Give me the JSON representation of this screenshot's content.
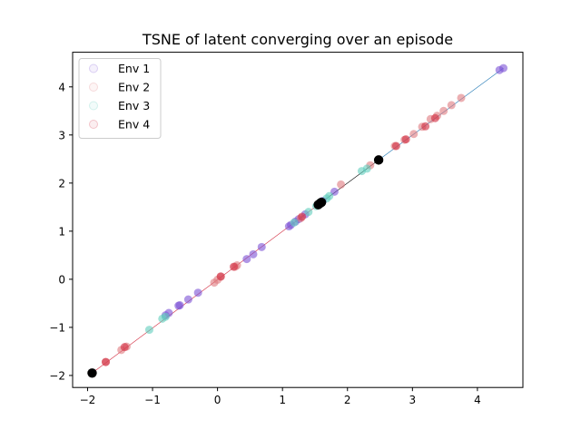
{
  "chart_data": {
    "type": "scatter",
    "title": "TSNE of latent converging over an episode",
    "xlabel": "",
    "ylabel": "",
    "xlim": [
      -2.23,
      4.7
    ],
    "ylim": [
      -2.25,
      4.72
    ],
    "xticks": [
      -2,
      -1,
      0,
      1,
      2,
      3,
      4
    ],
    "yticks": [
      -2,
      -1,
      0,
      1,
      2,
      3,
      4
    ],
    "grid": false,
    "legend_position": "top-left",
    "series": [
      {
        "name": "Env 1",
        "color": "#7b52d6",
        "points": [
          [
            -0.75,
            -0.7
          ],
          [
            -0.8,
            -0.75
          ],
          [
            -0.6,
            -0.55
          ],
          [
            -0.58,
            -0.54
          ],
          [
            -0.45,
            -0.42
          ],
          [
            -0.3,
            -0.28
          ],
          [
            0.45,
            0.42
          ],
          [
            0.55,
            0.52
          ],
          [
            0.68,
            0.67
          ],
          [
            1.1,
            1.1
          ],
          [
            1.13,
            1.13
          ],
          [
            1.2,
            1.2
          ],
          [
            1.25,
            1.25
          ],
          [
            1.35,
            1.35
          ],
          [
            1.62,
            1.63
          ],
          [
            1.8,
            1.82
          ],
          [
            4.34,
            4.35
          ],
          [
            4.4,
            4.39
          ]
        ]
      },
      {
        "name": "Env 2",
        "color": "#e07a7f",
        "points": [
          [
            -1.72,
            -1.72
          ],
          [
            -1.48,
            -1.47
          ],
          [
            -1.4,
            -1.4
          ],
          [
            -0.05,
            -0.07
          ],
          [
            0.0,
            -0.01
          ],
          [
            0.05,
            0.05
          ],
          [
            0.27,
            0.26
          ],
          [
            0.3,
            0.29
          ],
          [
            1.28,
            1.27
          ],
          [
            1.9,
            1.97
          ],
          [
            2.35,
            2.37
          ],
          [
            2.73,
            2.77
          ],
          [
            2.88,
            2.9
          ],
          [
            3.02,
            3.02
          ],
          [
            3.15,
            3.17
          ],
          [
            3.28,
            3.33
          ],
          [
            3.38,
            3.4
          ],
          [
            3.48,
            3.5
          ],
          [
            3.6,
            3.62
          ],
          [
            3.75,
            3.77
          ]
        ]
      },
      {
        "name": "Env 3",
        "color": "#5fcdbd",
        "points": [
          [
            -1.05,
            -1.05
          ],
          [
            -0.85,
            -0.82
          ],
          [
            -0.8,
            -0.78
          ],
          [
            1.18,
            1.18
          ],
          [
            1.4,
            1.4
          ],
          [
            1.52,
            1.52
          ],
          [
            1.58,
            1.6
          ],
          [
            1.68,
            1.68
          ],
          [
            1.72,
            1.73
          ],
          [
            2.22,
            2.25
          ],
          [
            2.3,
            2.3
          ]
        ]
      },
      {
        "name": "Env 4",
        "color": "#d22b3f",
        "points": [
          [
            -1.72,
            -1.72
          ],
          [
            -1.43,
            -1.41
          ],
          [
            0.25,
            0.26
          ],
          [
            0.05,
            0.06
          ],
          [
            1.3,
            1.3
          ],
          [
            2.75,
            2.77
          ],
          [
            2.9,
            2.91
          ],
          [
            3.2,
            3.18
          ],
          [
            3.35,
            3.35
          ]
        ]
      }
    ],
    "markers_black": [
      [
        -1.93,
        -1.95
      ],
      [
        1.55,
        1.55
      ],
      [
        1.6,
        1.6
      ],
      [
        1.58,
        1.58
      ],
      [
        2.48,
        2.48
      ]
    ],
    "trajectory_colors": [
      "#d22b3f",
      "#000000",
      "#1f77b4"
    ]
  }
}
